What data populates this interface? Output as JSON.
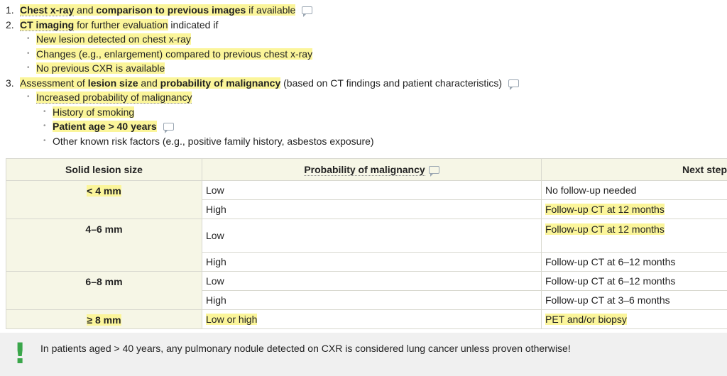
{
  "list": {
    "item1": {
      "number": "1.",
      "part1": "Chest x-ray",
      "part2": " and ",
      "part3": "comparison to previous images",
      "part4": " if available"
    },
    "item2": {
      "number": "2.",
      "part1": "CT imaging",
      "part2": " for further evaluation",
      "part3": " indicated if",
      "sub": [
        "New lesion detected on chest x-ray",
        "Changes (e.g., enlargement) compared to previous chest x-ray",
        "No previous CXR is available"
      ]
    },
    "item3": {
      "number": "3.",
      "part1": "Assessment of ",
      "part2": "lesion size",
      "part3": " and ",
      "part4": "probability of malignancy",
      "part5": " (based on CT findings and patient characteristics)",
      "sub1": "Increased probability of malignancy",
      "subsub": [
        "History of smoking",
        "Patient age > 40 years",
        "Other known risk factors (e.g., positive family history, asbestos exposure)"
      ]
    }
  },
  "table": {
    "headers": [
      "Solid lesion size",
      "Probability of malignancy",
      "Next step"
    ],
    "rows": [
      {
        "size": "< 4 mm",
        "low": "Low",
        "low_step": "No follow-up needed",
        "high": "High",
        "high_step": "Follow-up CT at 12 months"
      },
      {
        "size": "4–6 mm",
        "low": "Low",
        "low_step": "Follow-up CT at 12 months",
        "high": "High",
        "high_step": "Follow-up CT at 6–12 months"
      },
      {
        "size": "6–8 mm",
        "low": "Low",
        "low_step": "Follow-up CT at 6–12 months",
        "high": "High",
        "high_step": "Follow-up CT at 3–6 months"
      },
      {
        "size": "≥ 8 mm",
        "prob": "Low or high",
        "step": "PET and/or biopsy"
      }
    ]
  },
  "note": {
    "mark": "!",
    "text": "In patients aged > 40 years, any pulmonary nodule detected on CXR is considered lung cancer unless proven otherwise!"
  },
  "icons": {
    "comment": "comment-icon",
    "bullet": "•",
    "highlight_color": "#fbf59a",
    "header_bg": "#f6f6e6",
    "exclamation_color": "#3aa64a"
  }
}
